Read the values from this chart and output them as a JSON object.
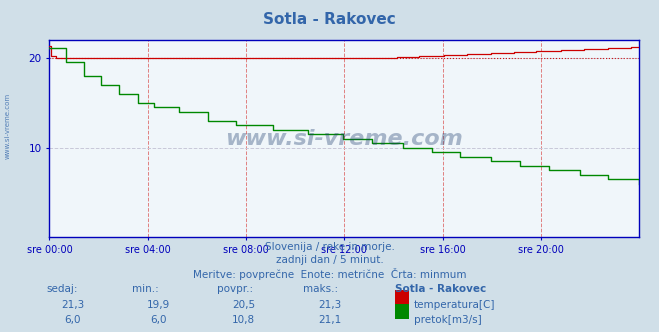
{
  "title": "Sotla - Rakovec",
  "bg_color": "#d0dfe8",
  "plot_bg_color": "#f0f6fa",
  "grid_color_v": "#e08080",
  "grid_color_h": "#c8c8d8",
  "temp_color": "#cc0000",
  "flow_color": "#008800",
  "axis_color": "#0000bb",
  "text_color": "#3366aa",
  "xlabel_times": [
    "sre 00:00",
    "sre 04:00",
    "sre 08:00",
    "sre 12:00",
    "sre 16:00",
    "sre 20:00"
  ],
  "ylabel_values": [
    10,
    20
  ],
  "ylim": [
    0,
    22
  ],
  "xlim": [
    0,
    287
  ],
  "n_points": 288,
  "temp_avg_line": 20.0,
  "subtitle1": "Slovenija / reke in morje.",
  "subtitle2": "zadnji dan / 5 minut.",
  "subtitle3": "Meritve: povprečne  Enote: metrične  Črta: minmum",
  "label_sedaj": "sedaj:",
  "label_min": "min.:",
  "label_povpr": "povpr.:",
  "label_maks": "maks.:",
  "label_station": "Sotla - Rakovec",
  "label_temp": "temperatura[C]",
  "label_flow": "pretok[m3/s]",
  "temp_vals": [
    "21,3",
    "19,9",
    "20,5",
    "21,3"
  ],
  "flow_vals": [
    "6,0",
    "6,0",
    "10,8",
    "21,1"
  ],
  "watermark": "www.si-vreme.com"
}
